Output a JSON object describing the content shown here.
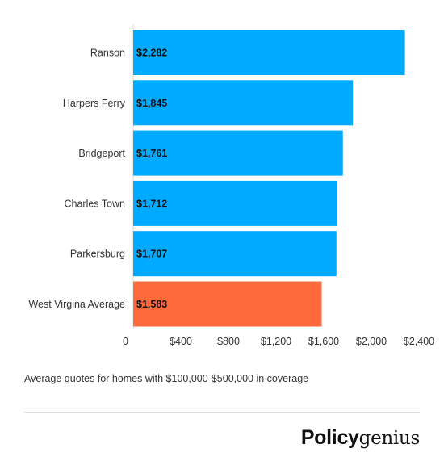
{
  "chart_data": {
    "type": "bar",
    "orientation": "horizontal",
    "categories": [
      "Ranson",
      "Harpers Ferry",
      "Bridgeport",
      "Charles Town",
      "Parkersburg",
      "West Virgina Average"
    ],
    "values": [
      2282,
      1845,
      1761,
      1712,
      1707,
      1583
    ],
    "value_labels": [
      "$2,282",
      "$1,845",
      "$1,761",
      "$1,712",
      "$1,707",
      "$1,583"
    ],
    "bar_colors": [
      "#00aaff",
      "#00aaff",
      "#00aaff",
      "#00aaff",
      "#00aaff",
      "#ff6a3d"
    ],
    "xlim": [
      0,
      2400
    ],
    "xticks": [
      0,
      400,
      800,
      1200,
      1600,
      2000,
      2400
    ],
    "xtick_labels": [
      "0",
      "$400",
      "$800",
      "$1,200",
      "$1,600",
      "$2,000",
      "$2,400"
    ],
    "grid": false,
    "legend": "none"
  },
  "caption": "Average quotes for homes with $100,000-$500,000 in coverage",
  "logo": {
    "part1": "Policy",
    "part2": "genius"
  }
}
